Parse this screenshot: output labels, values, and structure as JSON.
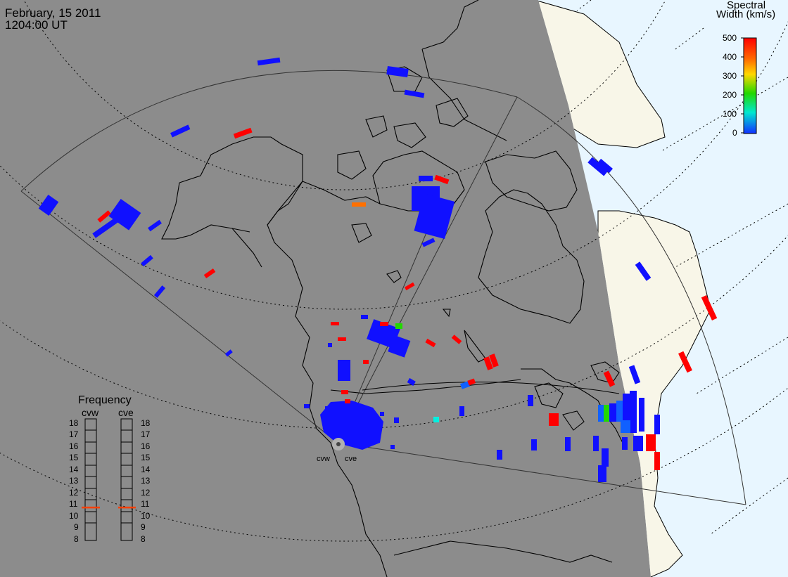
{
  "header": {
    "date": "February, 15 2011",
    "time": "1204:00 UT"
  },
  "colorbar": {
    "title_line1": "Spectral",
    "title_line2": "Width (km/s)",
    "ticks": [
      "500",
      "400",
      "300",
      "200",
      "100",
      "0"
    ],
    "colors": [
      "#ff0000",
      "#ff6a00",
      "#ffd800",
      "#22d800",
      "#00e8d0",
      "#1030ff"
    ]
  },
  "frequency": {
    "title": "Frequency",
    "columns": [
      "cvw",
      "cve"
    ],
    "ticks": [
      "18",
      "17",
      "16",
      "15",
      "14",
      "13",
      "12",
      "11",
      "10",
      "9",
      "8"
    ],
    "cvw_mhz": 10.7,
    "cve_mhz": 10.7,
    "marker_color": "#ff4000"
  },
  "radars": [
    {
      "code": "cvw"
    },
    {
      "code": "cve"
    }
  ],
  "colors": {
    "night": "#8c8c8c",
    "day_land": "#f8f6e8",
    "day_ocean": "#e8f6ff",
    "low_width": "#1010ff",
    "high_width": "#ff0000"
  }
}
